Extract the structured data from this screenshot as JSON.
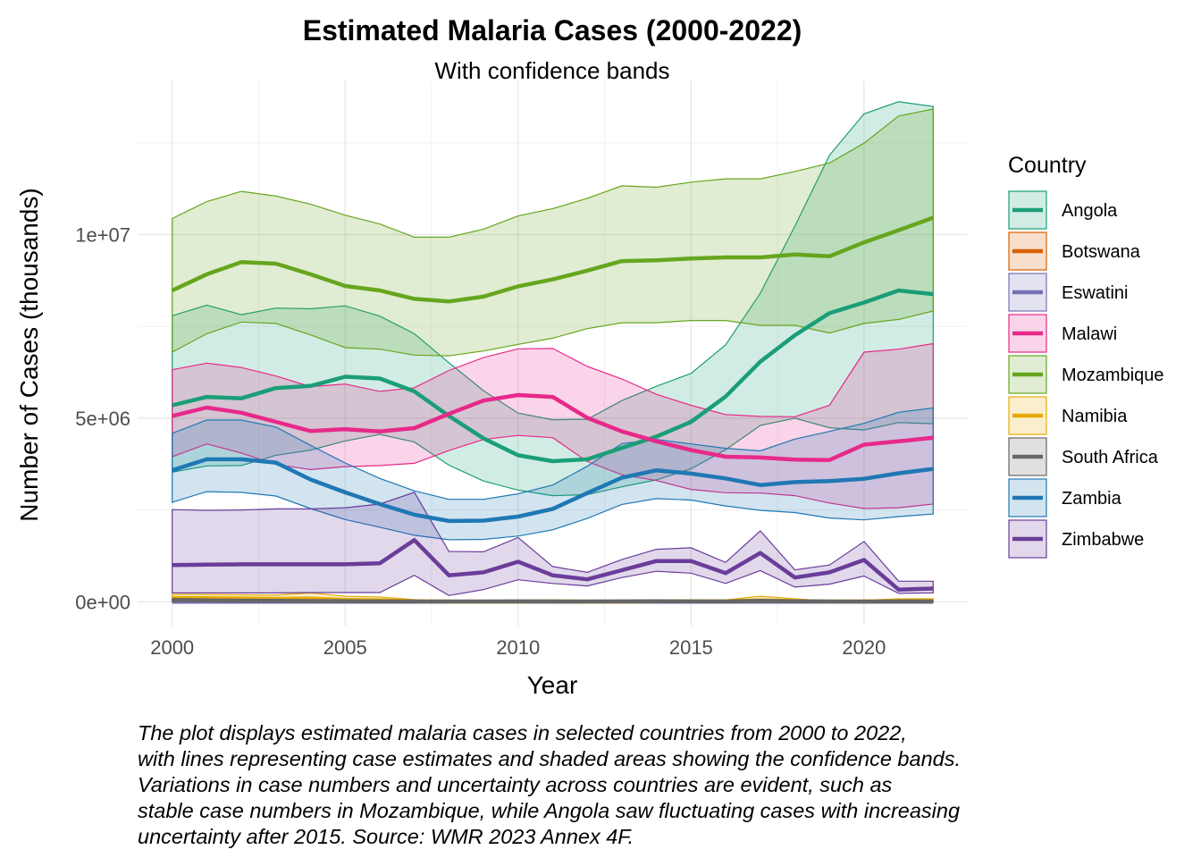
{
  "chart_data": {
    "type": "area",
    "title": "Estimated Malaria Cases (2000-2022)",
    "subtitle": "With confidence bands",
    "xlabel": "Year",
    "ylabel": "Number of Cases (thousands)",
    "x": [
      2000,
      2001,
      2002,
      2003,
      2004,
      2005,
      2006,
      2007,
      2008,
      2009,
      2010,
      2011,
      2012,
      2013,
      2014,
      2015,
      2016,
      2017,
      2018,
      2019,
      2020,
      2021,
      2022
    ],
    "xlim": [
      1999,
      2023
    ],
    "ylim": [
      -650000,
      14200000
    ],
    "x_ticks": [
      2000,
      2005,
      2010,
      2015,
      2020
    ],
    "x_tick_labels": [
      "2000",
      "2005",
      "2010",
      "2015",
      "2020"
    ],
    "y_ticks": [
      0,
      5000000,
      10000000
    ],
    "y_tick_labels": [
      "0e+00",
      "5e+06",
      "1e+07"
    ],
    "grid": true,
    "legend": {
      "title": "Country",
      "position": "right"
    },
    "series": [
      {
        "name": "Angola",
        "color": "#1b9e77",
        "values": [
          5350000,
          5580000,
          5540000,
          5820000,
          5880000,
          6130000,
          6080000,
          5730000,
          5060000,
          4450000,
          3990000,
          3830000,
          3880000,
          4190000,
          4500000,
          4900000,
          5590000,
          6540000,
          7260000,
          7860000,
          8150000,
          8480000,
          8380000
        ],
        "lower": [
          3530000,
          3700000,
          3710000,
          3990000,
          4130000,
          4380000,
          4560000,
          4350000,
          3720000,
          3290000,
          3040000,
          2890000,
          2920000,
          3130000,
          3320000,
          3620000,
          4140000,
          4800000,
          5000000,
          4740000,
          4680000,
          4880000,
          4850000
        ],
        "upper": [
          7790000,
          8080000,
          7820000,
          8000000,
          7980000,
          8060000,
          7780000,
          7300000,
          6510000,
          5750000,
          5140000,
          4960000,
          4970000,
          5480000,
          5870000,
          6220000,
          7000000,
          8400000,
          10230000,
          12160000,
          13290000,
          13620000,
          13490000
        ]
      },
      {
        "name": "Botswana",
        "color": "#d95f02",
        "values": [
          20000,
          18000,
          15000,
          12000,
          9000,
          7000,
          5000,
          3000,
          2000,
          2000,
          2000,
          2000,
          1000,
          1000,
          2000,
          2000,
          2000,
          3000,
          2000,
          1000,
          1000,
          1000,
          1000
        ],
        "lower": [
          10000,
          9000,
          7000,
          5000,
          4000,
          3000,
          2000,
          1000,
          1000,
          1000,
          1000,
          1000,
          500,
          500,
          1000,
          1000,
          1000,
          1000,
          1000,
          500,
          500,
          500,
          500
        ],
        "upper": [
          50000,
          45000,
          38000,
          30000,
          25000,
          20000,
          15000,
          10000,
          7000,
          6000,
          6000,
          5000,
          4000,
          4000,
          5000,
          5000,
          6000,
          8000,
          6000,
          4000,
          4000,
          4000,
          4000
        ]
      },
      {
        "name": "Eswatini",
        "color": "#7570b3",
        "values": [
          3000,
          2500,
          2000,
          1800,
          1500,
          1200,
          1000,
          900,
          800,
          700,
          600,
          500,
          500,
          500,
          600,
          700,
          700,
          800,
          700,
          600,
          500,
          500,
          500
        ],
        "lower": [
          1000,
          800,
          700,
          600,
          500,
          400,
          300,
          300,
          300,
          200,
          200,
          200,
          200,
          200,
          200,
          300,
          300,
          300,
          300,
          200,
          200,
          200,
          200
        ],
        "upper": [
          8000,
          7000,
          6000,
          5000,
          4500,
          4000,
          3500,
          3000,
          2500,
          2200,
          2000,
          1800,
          1600,
          1600,
          1800,
          2000,
          2200,
          2500,
          2200,
          1900,
          1700,
          1600,
          1600
        ]
      },
      {
        "name": "Malawi",
        "color": "#e7298a",
        "values": [
          5060000,
          5290000,
          5150000,
          4900000,
          4650000,
          4700000,
          4640000,
          4730000,
          5120000,
          5480000,
          5630000,
          5580000,
          5010000,
          4640000,
          4370000,
          4130000,
          3950000,
          3930000,
          3870000,
          3860000,
          4280000,
          4370000,
          4470000
        ],
        "lower": [
          3950000,
          4300000,
          4050000,
          3740000,
          3600000,
          3680000,
          3710000,
          3770000,
          4120000,
          4420000,
          4530000,
          4470000,
          3820000,
          3460000,
          3300000,
          3060000,
          2970000,
          2960000,
          2890000,
          2690000,
          2540000,
          2560000,
          2660000
        ],
        "upper": [
          6320000,
          6500000,
          6380000,
          6150000,
          5860000,
          5930000,
          5730000,
          5830000,
          6300000,
          6650000,
          6890000,
          6900000,
          6410000,
          6070000,
          5650000,
          5350000,
          5100000,
          5050000,
          5040000,
          5350000,
          6800000,
          6880000,
          7030000
        ]
      },
      {
        "name": "Mozambique",
        "color": "#66a61e",
        "values": [
          8480000,
          8920000,
          9250000,
          9210000,
          8920000,
          8600000,
          8480000,
          8250000,
          8180000,
          8310000,
          8590000,
          8780000,
          9020000,
          9280000,
          9300000,
          9350000,
          9380000,
          9380000,
          9460000,
          9410000,
          9790000,
          10120000,
          10460000
        ],
        "lower": [
          6800000,
          7300000,
          7620000,
          7580000,
          7270000,
          6920000,
          6880000,
          6720000,
          6700000,
          6830000,
          7010000,
          7180000,
          7440000,
          7600000,
          7600000,
          7660000,
          7660000,
          7530000,
          7530000,
          7320000,
          7580000,
          7690000,
          7920000
        ],
        "upper": [
          10440000,
          10900000,
          11180000,
          11050000,
          10830000,
          10530000,
          10290000,
          9930000,
          9930000,
          10150000,
          10510000,
          10710000,
          10990000,
          11330000,
          11290000,
          11430000,
          11520000,
          11520000,
          11720000,
          11950000,
          12490000,
          13230000,
          13420000
        ]
      },
      {
        "name": "Namibia",
        "color": "#e6ab02",
        "values": [
          100000,
          100000,
          90000,
          80000,
          90000,
          50000,
          40000,
          15000,
          5000,
          5000,
          8000,
          10000,
          5000,
          5000,
          15000,
          12000,
          15000,
          40000,
          20000,
          5000,
          10000,
          20000,
          20000
        ],
        "lower": [
          50000,
          50000,
          40000,
          40000,
          50000,
          25000,
          20000,
          5000,
          2000,
          2000,
          3000,
          5000,
          2000,
          2000,
          8000,
          6000,
          8000,
          20000,
          10000,
          2000,
          5000,
          10000,
          10000
        ],
        "upper": [
          200000,
          200000,
          190000,
          180000,
          240000,
          150000,
          130000,
          60000,
          20000,
          20000,
          30000,
          40000,
          20000,
          20000,
          50000,
          40000,
          50000,
          150000,
          80000,
          20000,
          40000,
          80000,
          80000
        ]
      },
      {
        "name": "South Africa",
        "color": "#666666",
        "values": [
          50000,
          40000,
          30000,
          25000,
          20000,
          15000,
          10000,
          8000,
          8000,
          8000,
          9000,
          10000,
          8000,
          9000,
          15000,
          10000,
          8000,
          25000,
          15000,
          8000,
          6000,
          10000,
          8000
        ],
        "lower": [
          30000,
          25000,
          20000,
          15000,
          12000,
          9000,
          6000,
          5000,
          5000,
          5000,
          6000,
          6000,
          5000,
          6000,
          9000,
          6000,
          5000,
          15000,
          9000,
          5000,
          4000,
          6000,
          5000
        ],
        "upper": [
          80000,
          70000,
          50000,
          40000,
          35000,
          25000,
          18000,
          15000,
          15000,
          15000,
          16000,
          17000,
          14000,
          15000,
          25000,
          18000,
          14000,
          40000,
          25000,
          14000,
          10000,
          16000,
          14000
        ]
      },
      {
        "name": "Zambia",
        "color": "#1f78b4",
        "values": [
          3580000,
          3880000,
          3880000,
          3790000,
          3330000,
          2980000,
          2660000,
          2370000,
          2200000,
          2210000,
          2320000,
          2530000,
          2960000,
          3380000,
          3580000,
          3490000,
          3360000,
          3180000,
          3260000,
          3290000,
          3350000,
          3500000,
          3620000
        ],
        "lower": [
          2710000,
          3000000,
          2980000,
          2880000,
          2540000,
          2240000,
          2030000,
          1810000,
          1690000,
          1700000,
          1790000,
          1960000,
          2270000,
          2650000,
          2810000,
          2770000,
          2610000,
          2490000,
          2430000,
          2280000,
          2230000,
          2320000,
          2390000
        ],
        "upper": [
          4590000,
          4950000,
          4950000,
          4760000,
          4260000,
          3780000,
          3360000,
          3020000,
          2790000,
          2790000,
          2940000,
          3180000,
          3690000,
          4310000,
          4420000,
          4300000,
          4180000,
          4110000,
          4430000,
          4640000,
          4860000,
          5160000,
          5280000
        ]
      },
      {
        "name": "Zimbabwe",
        "color": "#6a3d9a",
        "values": [
          1000000,
          1010000,
          1020000,
          1020000,
          1020000,
          1020000,
          1050000,
          1680000,
          720000,
          800000,
          1090000,
          720000,
          610000,
          860000,
          1110000,
          1110000,
          780000,
          1330000,
          660000,
          800000,
          1140000,
          330000,
          360000
        ],
        "lower": [
          240000,
          240000,
          240000,
          240000,
          250000,
          250000,
          250000,
          720000,
          170000,
          330000,
          600000,
          500000,
          430000,
          660000,
          830000,
          780000,
          500000,
          850000,
          400000,
          480000,
          700000,
          230000,
          240000
        ],
        "upper": [
          2510000,
          2490000,
          2500000,
          2530000,
          2530000,
          2560000,
          2660000,
          2980000,
          1370000,
          1360000,
          1750000,
          960000,
          800000,
          1150000,
          1430000,
          1470000,
          1070000,
          1930000,
          870000,
          1000000,
          1640000,
          560000,
          560000
        ]
      }
    ]
  },
  "caption": {
    "lines": [
      "The plot displays estimated malaria cases in selected countries from 2000 to 2022,",
      "with lines representing case estimates and shaded areas showing the confidence bands.",
      "Variations in case numbers and uncertainty across countries are evident, such as",
      "stable case numbers in Mozambique, while Angola saw fluctuating cases with increasing",
      "uncertainty after 2015. Source: WMR 2023 Annex 4F."
    ]
  }
}
